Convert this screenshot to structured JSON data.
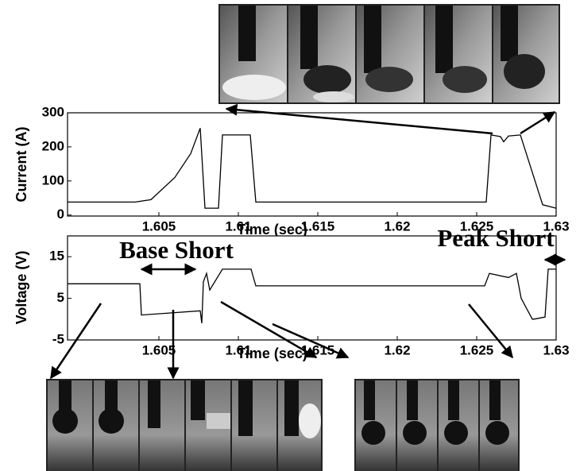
{
  "chart_data": [
    {
      "type": "line",
      "ylabel": "Current (A)",
      "xlabel": "Time (sec)",
      "xlim": [
        1.59925,
        1.63
      ],
      "xticks": [
        1.605,
        1.61,
        1.615,
        1.62,
        1.625,
        1.63
      ],
      "ylim": [
        -3,
        300
      ],
      "yticks": [
        0,
        100,
        200,
        300
      ],
      "series": [
        {
          "color": "#000000",
          "x": [
            1.59925,
            1.6035,
            1.6045,
            1.606,
            1.607,
            1.6076,
            1.6079,
            1.60875,
            1.609,
            1.61075,
            1.6111,
            1.6256,
            1.6259,
            1.6265,
            1.6267,
            1.627,
            1.62775,
            1.62915,
            1.63
          ],
          "values": [
            38,
            38,
            45,
            110,
            180,
            255,
            20,
            20,
            235,
            235,
            38,
            38,
            235,
            230,
            215,
            232,
            235,
            30,
            20
          ]
        }
      ]
    },
    {
      "type": "line",
      "ylabel": "Voltage (V)",
      "xlabel": "Time (sec)",
      "xlim": [
        1.59925,
        1.63
      ],
      "xticks": [
        1.605,
        1.61,
        1.615,
        1.62,
        1.625,
        1.63
      ],
      "ylim": [
        -5,
        20
      ],
      "yticks": [
        -5,
        5,
        15
      ],
      "annotations": [
        "Base Short",
        "Peak Short"
      ],
      "series": [
        {
          "color": "#000000",
          "x": [
            1.59925,
            1.6038,
            1.6039,
            1.6076,
            1.6077,
            1.6078,
            1.608,
            1.6082,
            1.609,
            1.6108,
            1.6111,
            1.612,
            1.6255,
            1.6258,
            1.627,
            1.6275,
            1.6278,
            1.6285,
            1.6286,
            1.6293,
            1.6295,
            1.63
          ],
          "values": [
            8.5,
            8.5,
            1,
            2,
            -1,
            9,
            11,
            7,
            12,
            12,
            8,
            8,
            8,
            11,
            10,
            11,
            5,
            0,
            0,
            0.5,
            12,
            12
          ]
        }
      ]
    }
  ]
}
